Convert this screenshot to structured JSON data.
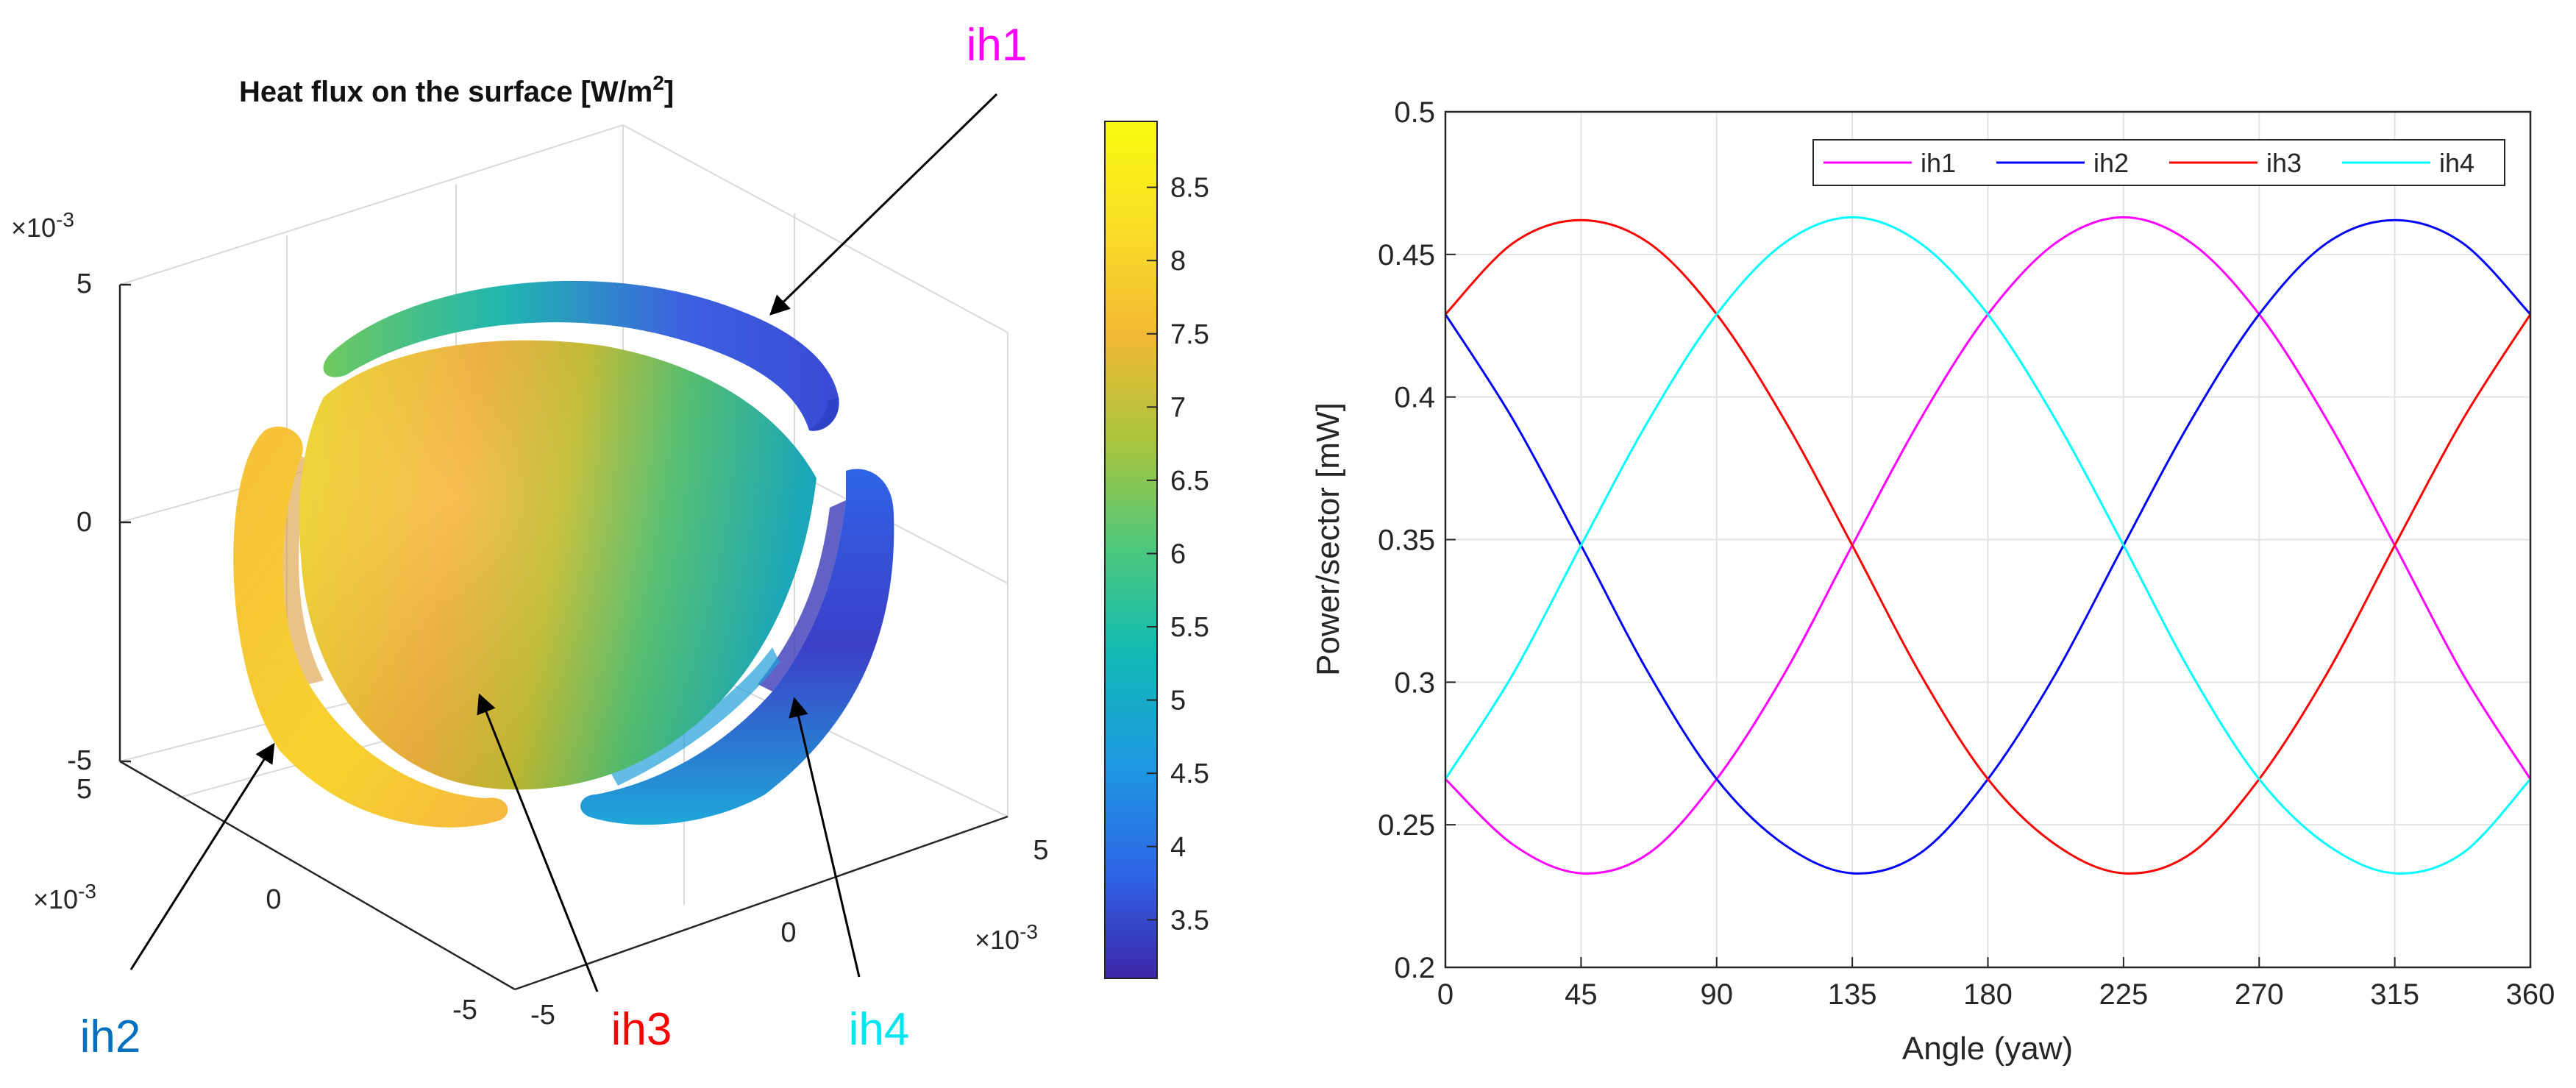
{
  "left_figure": {
    "title": "Heat flux on the surface [W/m",
    "title_sup": "2",
    "title_end": "]",
    "z_scale_label": "×10",
    "z_scale_exp": "-3",
    "z_ticks": [
      "5",
      "0",
      "-5"
    ],
    "y_scale_label": "×10",
    "y_scale_exp": "-3",
    "y_ticks": [
      "5",
      "0",
      "-5"
    ],
    "x_scale_label": "×10",
    "x_scale_exp": "-3",
    "x_ticks": [
      "5",
      "0",
      "-5"
    ],
    "colorbar": {
      "ticks": [
        "8.5",
        "8",
        "7.5",
        "7",
        "6.5",
        "6",
        "5.5",
        "5",
        "4.5",
        "4",
        "3.5"
      ],
      "range": [
        3.1,
        8.95
      ],
      "colors": [
        "#3e26a8",
        "#2f64e7",
        "#1d99e1",
        "#10bab3",
        "#4cc77e",
        "#a6c53f",
        "#f2b934",
        "#f9df26",
        "#f9fb0e"
      ]
    },
    "annotations": [
      {
        "label": "ih1",
        "color": "#ff00ff"
      },
      {
        "label": "ih2",
        "color": "#0070c0"
      },
      {
        "label": "ih3",
        "color": "#ff0000"
      },
      {
        "label": "ih4",
        "color": "#00e5ee"
      }
    ]
  },
  "chart_data": {
    "type": "line",
    "title": "",
    "xlabel": "Angle (yaw)",
    "ylabel": "Power/sector [mW]",
    "xlim": [
      0,
      360
    ],
    "ylim": [
      0.2,
      0.5
    ],
    "xticks": [
      0,
      45,
      90,
      135,
      180,
      225,
      270,
      315,
      360
    ],
    "yticks": [
      0.2,
      0.25,
      0.3,
      0.35,
      0.4,
      0.45,
      0.5
    ],
    "ytick_labels": [
      "0.2",
      "0.25",
      "0.3",
      "0.35",
      "0.4",
      "0.45",
      "0.5"
    ],
    "grid": true,
    "legend_position": "top-right",
    "x": [
      0,
      22.5,
      45,
      67.5,
      90,
      112.5,
      135,
      157.5,
      180,
      202.5,
      225,
      247.5,
      270,
      292.5,
      315,
      337.5,
      360
    ],
    "series": [
      {
        "name": "ih1",
        "color": "#ff00ff",
        "values": [
          0.266,
          0.243,
          0.233,
          0.24,
          0.266,
          0.303,
          0.348,
          0.392,
          0.429,
          0.454,
          0.463,
          0.454,
          0.429,
          0.392,
          0.348,
          0.303,
          0.266
        ]
      },
      {
        "name": "ih2",
        "color": "#0000ff",
        "values": [
          0.429,
          0.392,
          0.348,
          0.303,
          0.266,
          0.243,
          0.233,
          0.24,
          0.266,
          0.303,
          0.348,
          0.392,
          0.429,
          0.454,
          0.462,
          0.454,
          0.429
        ]
      },
      {
        "name": "ih3",
        "color": "#ff0000",
        "values": [
          0.429,
          0.454,
          0.462,
          0.454,
          0.429,
          0.392,
          0.348,
          0.303,
          0.266,
          0.243,
          0.233,
          0.24,
          0.266,
          0.303,
          0.348,
          0.392,
          0.429
        ]
      },
      {
        "name": "ih4",
        "color": "#00ffff",
        "values": [
          0.266,
          0.303,
          0.348,
          0.392,
          0.429,
          0.454,
          0.463,
          0.454,
          0.429,
          0.392,
          0.348,
          0.303,
          0.266,
          0.243,
          0.233,
          0.24,
          0.266
        ]
      }
    ]
  }
}
